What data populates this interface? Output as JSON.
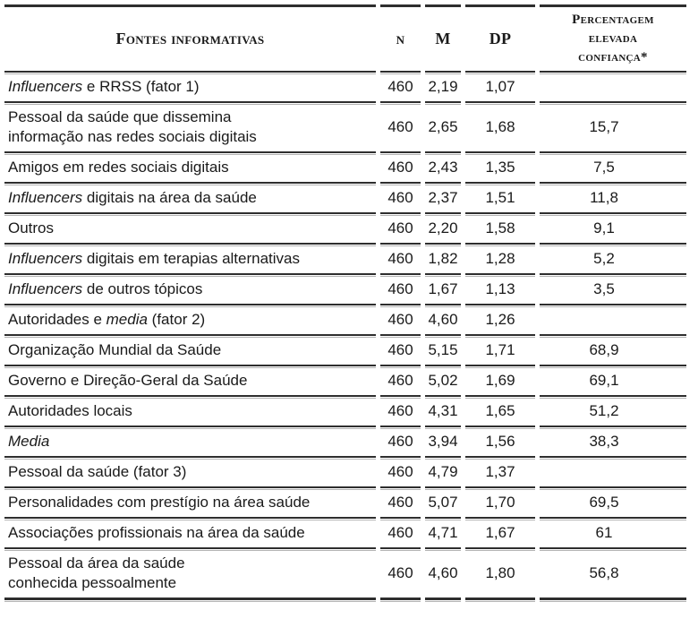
{
  "colors": {
    "background": "#ffffff",
    "text": "#1a1a1a",
    "rule_dark": "#2e2e2e",
    "rule_shadow": "#b3b3b3"
  },
  "table": {
    "columns": [
      {
        "id": "fontes",
        "label": "Fontes informativas"
      },
      {
        "id": "n",
        "label": "N"
      },
      {
        "id": "m",
        "label": "M"
      },
      {
        "id": "dp",
        "label": "DP"
      },
      {
        "id": "pct",
        "label": "Percentagem elevada confiança*",
        "lines": [
          "Percentagem",
          "elevada",
          "confiança*"
        ]
      }
    ],
    "rows": [
      {
        "label": [
          [
            {
              "t": "Influencers",
              "i": true
            },
            {
              "t": " e RRSS (fator 1)"
            }
          ]
        ],
        "n": "460",
        "m": "2,19",
        "dp": "1,07",
        "pct": ""
      },
      {
        "label": [
          [
            {
              "t": "Pessoal da saúde que dissemina"
            }
          ],
          [
            {
              "t": "informação nas redes sociais digitais"
            }
          ]
        ],
        "n": "460",
        "m": "2,65",
        "dp": "1,68",
        "pct": "15,7"
      },
      {
        "label": [
          [
            {
              "t": "Amigos em redes sociais digitais"
            }
          ]
        ],
        "n": "460",
        "m": "2,43",
        "dp": "1,35",
        "pct": "7,5"
      },
      {
        "label": [
          [
            {
              "t": "Influencers",
              "i": true
            },
            {
              "t": " digitais na área da saúde"
            }
          ]
        ],
        "n": "460",
        "m": "2,37",
        "dp": "1,51",
        "pct": "11,8"
      },
      {
        "label": [
          [
            {
              "t": "Outros"
            }
          ]
        ],
        "n": "460",
        "m": "2,20",
        "dp": "1,58",
        "pct": "9,1"
      },
      {
        "label": [
          [
            {
              "t": "Influencers",
              "i": true
            },
            {
              "t": " digitais em terapias alternativas"
            }
          ]
        ],
        "n": "460",
        "m": "1,82",
        "dp": "1,28",
        "pct": "5,2"
      },
      {
        "label": [
          [
            {
              "t": "Influencers",
              "i": true
            },
            {
              "t": " de outros tópicos"
            }
          ]
        ],
        "n": "460",
        "m": "1,67",
        "dp": "1,13",
        "pct": "3,5"
      },
      {
        "label": [
          [
            {
              "t": "Autoridades e "
            },
            {
              "t": "media",
              "i": true
            },
            {
              "t": " (fator 2)"
            }
          ]
        ],
        "n": "460",
        "m": "4,60",
        "dp": "1,26",
        "pct": ""
      },
      {
        "label": [
          [
            {
              "t": "Organização Mundial da Saúde"
            }
          ]
        ],
        "n": "460",
        "m": "5,15",
        "dp": "1,71",
        "pct": "68,9"
      },
      {
        "label": [
          [
            {
              "t": "Governo e Direção-Geral da Saúde"
            }
          ]
        ],
        "n": "460",
        "m": "5,02",
        "dp": "1,69",
        "pct": "69,1"
      },
      {
        "label": [
          [
            {
              "t": "Autoridades locais"
            }
          ]
        ],
        "n": "460",
        "m": "4,31",
        "dp": "1,65",
        "pct": "51,2"
      },
      {
        "label": [
          [
            {
              "t": "Media",
              "i": true
            }
          ]
        ],
        "n": "460",
        "m": "3,94",
        "dp": "1,56",
        "pct": "38,3"
      },
      {
        "label": [
          [
            {
              "t": "Pessoal da saúde (fator 3)"
            }
          ]
        ],
        "n": "460",
        "m": "4,79",
        "dp": "1,37",
        "pct": ""
      },
      {
        "label": [
          [
            {
              "t": "Personalidades com prestígio na área saúde"
            }
          ]
        ],
        "n": "460",
        "m": "5,07",
        "dp": "1,70",
        "pct": "69,5"
      },
      {
        "label": [
          [
            {
              "t": "Associações profissionais na área da saúde"
            }
          ]
        ],
        "n": "460",
        "m": "4,71",
        "dp": "1,67",
        "pct": "61"
      },
      {
        "label": [
          [
            {
              "t": "Pessoal da área da saúde"
            }
          ],
          [
            {
              "t": "conhecida pessoalmente"
            }
          ]
        ],
        "n": "460",
        "m": "4,60",
        "dp": "1,80",
        "pct": "56,8"
      }
    ]
  }
}
